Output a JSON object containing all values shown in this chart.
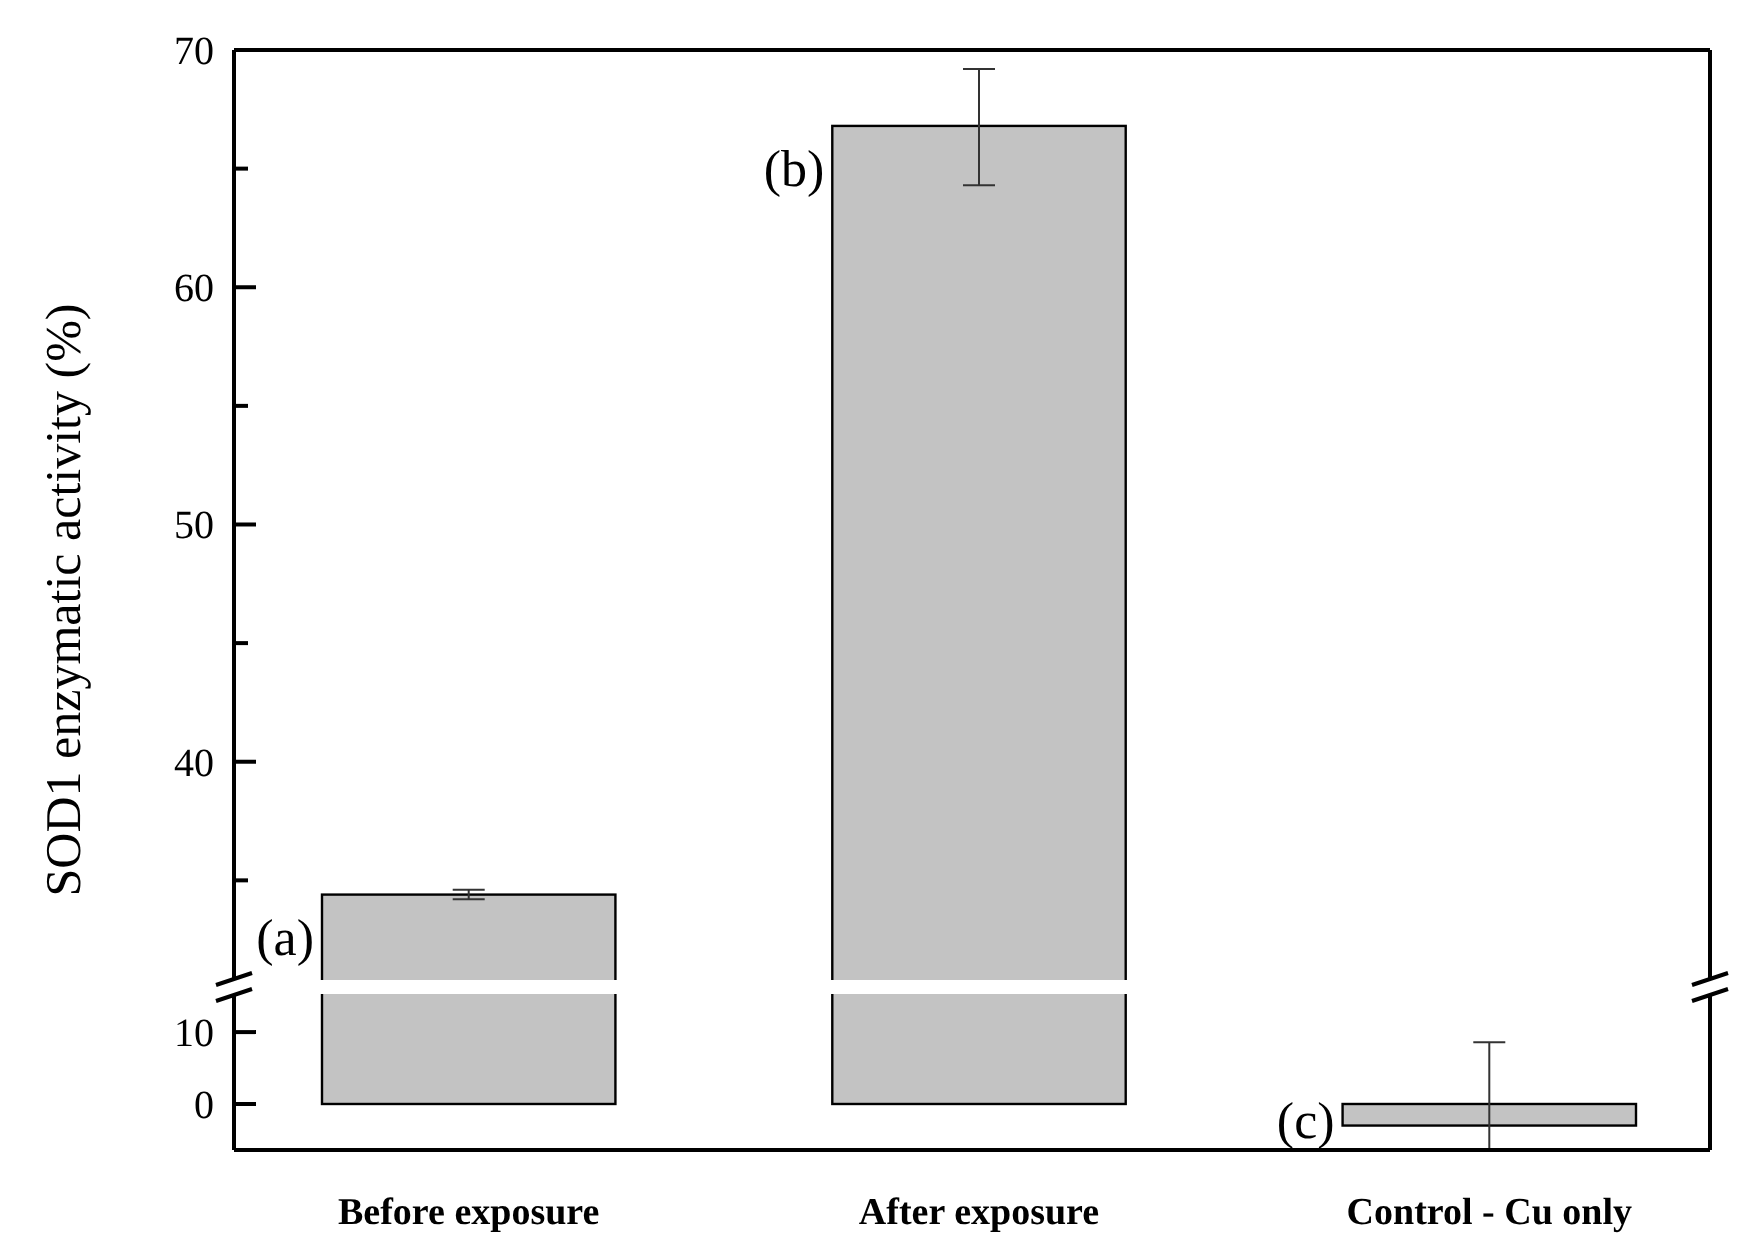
{
  "chart_data": [
    {
      "type": "bar",
      "ylabel": "SOD1 enzymatic activity (%)",
      "categories": [
        "Before exposure",
        "After exposure",
        "Control - Cu only"
      ],
      "series": [
        {
          "color": "#c3c3c3",
          "values": [
            34.4,
            66.8,
            null
          ],
          "errors": [
            0.2,
            [
              64.3,
              69.2
            ],
            null
          ]
        }
      ],
      "ylim": [
        30.8,
        70
      ],
      "yticks": [
        {
          "value": 35,
          "label": null
        },
        40,
        {
          "value": 45,
          "label": null
        },
        50,
        {
          "value": 55,
          "label": null
        },
        60,
        {
          "value": 65,
          "label": null
        },
        70
      ],
      "tick_labels": "y",
      "grid": false,
      "annotations": [
        {
          "text": "(a)",
          "x": "Before exposure",
          "y": 34.4
        },
        {
          "text": "(b)",
          "x": "After exposure",
          "y": 66.8
        }
      ]
    },
    {
      "type": "bar",
      "categories": [
        "Before exposure",
        "After exposure",
        "Control - Cu only"
      ],
      "series": [
        {
          "color": "#c3c3c3",
          "values": [
            null,
            null,
            -3.0
          ],
          "errors": [
            null,
            null,
            [
              -6.4,
              8.6
            ]
          ]
        }
      ],
      "ylim": [
        -6.4,
        15.3
      ],
      "yticks": [
        0,
        10
      ],
      "grid": false,
      "annotations": [
        {
          "text": "(c)",
          "x": "Control - Cu only",
          "y": -3.0
        }
      ]
    }
  ]
}
